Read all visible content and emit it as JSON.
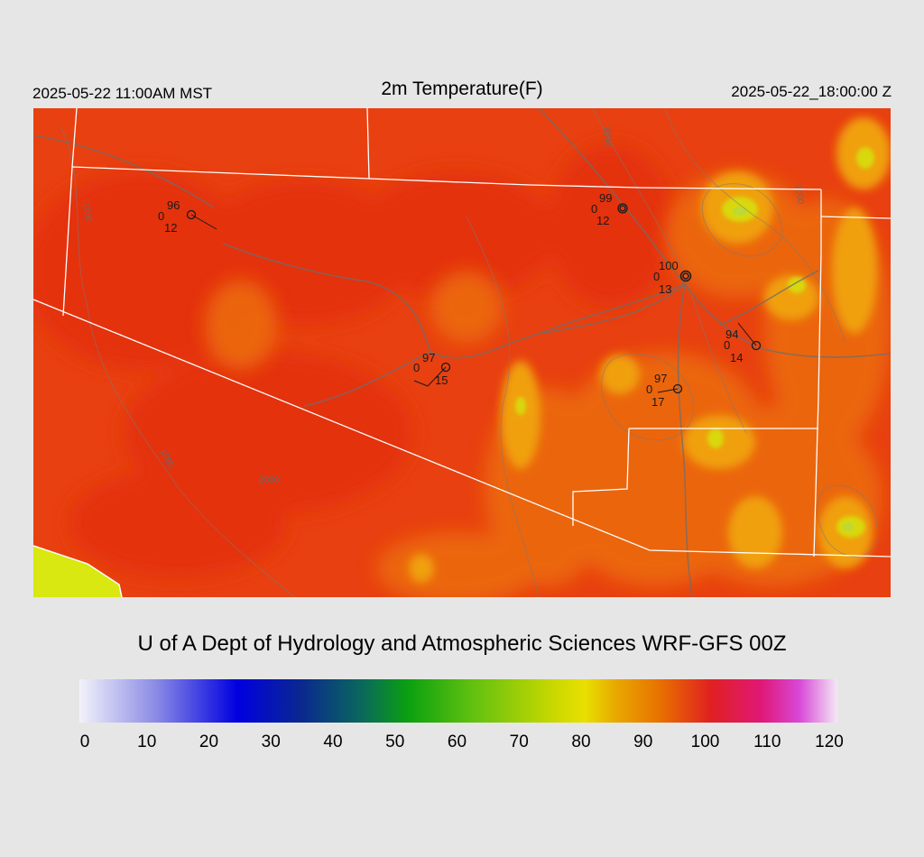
{
  "header": {
    "valid_local": "2025-05-22 11:00AM MST",
    "title": "2m Temperature(F)",
    "valid_utc": "2025-05-22_18:00:00 Z"
  },
  "credit": "U of A Dept of Hydrology and Atmospheric Sciences WRF-GFS 00Z",
  "colorbar": {
    "ticks": [
      "0",
      "10",
      "20",
      "30",
      "40",
      "50",
      "60",
      "70",
      "80",
      "90",
      "100",
      "110",
      "120"
    ],
    "stops": [
      {
        "value": 0,
        "color": "#f2f2fa"
      },
      {
        "value": 12,
        "color": "#8c8ce6"
      },
      {
        "value": 25,
        "color": "#0000e0"
      },
      {
        "value": 35,
        "color": "#0a2890"
      },
      {
        "value": 45,
        "color": "#0a6a5a"
      },
      {
        "value": 52,
        "color": "#0aa010"
      },
      {
        "value": 62,
        "color": "#60c010"
      },
      {
        "value": 75,
        "color": "#c8d800"
      },
      {
        "value": 80,
        "color": "#e8e000"
      },
      {
        "value": 85,
        "color": "#e8a800"
      },
      {
        "value": 92,
        "color": "#e87000"
      },
      {
        "value": 100,
        "color": "#e02020"
      },
      {
        "value": 108,
        "color": "#e01878"
      },
      {
        "value": 114,
        "color": "#d848d8"
      },
      {
        "value": 120,
        "color": "#f4e8f4"
      }
    ]
  },
  "stations": [
    {
      "temp": "96",
      "dew": "0",
      "wind": "12"
    },
    {
      "temp": "99",
      "dew": "0",
      "wind": "12"
    },
    {
      "temp": "100",
      "dew": "0",
      "wind": "13"
    },
    {
      "temp": "94",
      "dew": "0",
      "wind": "14"
    },
    {
      "temp": "97",
      "dew": "0",
      "wind": "15"
    },
    {
      "temp": "97",
      "dew": "0",
      "wind": "17"
    }
  ],
  "contour_labels": [
    "1000",
    "2000",
    "1000",
    "1000",
    "2000"
  ],
  "colors": {
    "background": "#e6e6e6",
    "field_base": "#e84010",
    "field_hot": "#e43008",
    "field_warm": "#ec6a10",
    "field_mild": "#f0a010",
    "field_cool": "#d8d810",
    "border": "#ffffff",
    "terrain": "#7a7a7a"
  }
}
